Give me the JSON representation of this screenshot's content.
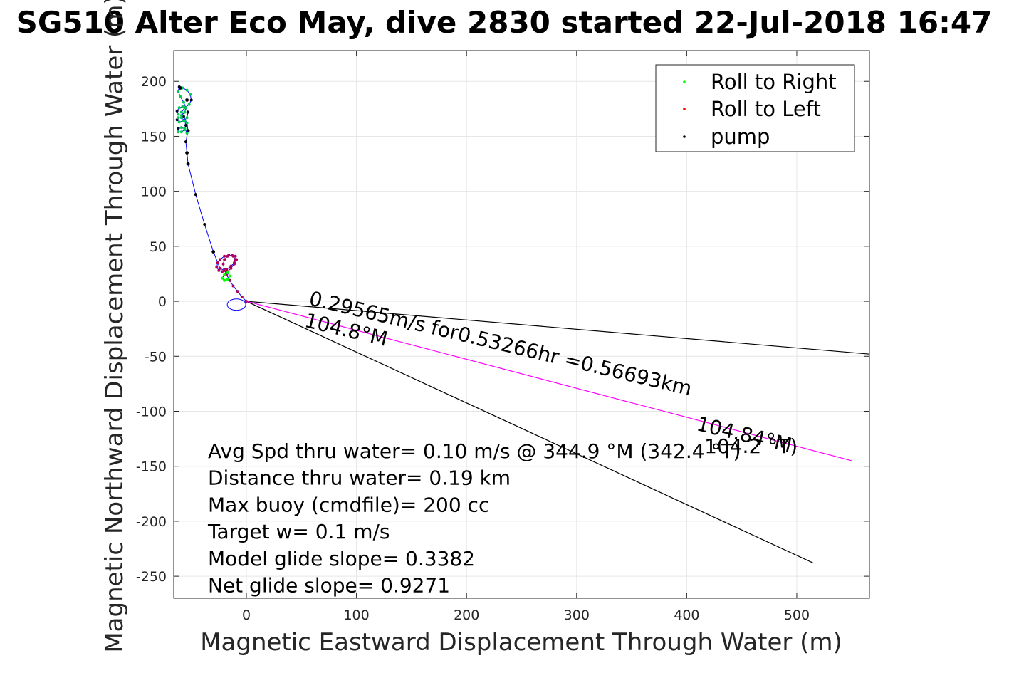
{
  "chart_data": {
    "type": "line",
    "title": "SG510 Alter Eco May, dive 2830 started 22-Jul-2018 16:47",
    "xlabel": "Magnetic Eastward Displacement Through Water (m)",
    "ylabel": "Magnetic Northward Displacement Through Water (m)",
    "xlim": [
      -66,
      566
    ],
    "ylim": [
      -270,
      228
    ],
    "xticks": [
      0,
      100,
      200,
      300,
      400,
      500
    ],
    "yticks": [
      -250,
      -200,
      -150,
      -100,
      -50,
      0,
      50,
      100,
      150,
      200
    ],
    "grid": true,
    "legend": {
      "position": "top-right",
      "entries": [
        {
          "label": "Roll to Right",
          "color": "#00ff00"
        },
        {
          "label": "Roll to Left",
          "color": "#ff0000"
        },
        {
          "label": "pump",
          "color": "#000000"
        }
      ]
    },
    "track_color": "#0000ff",
    "track": [
      [
        0,
        0
      ],
      [
        -4,
        4
      ],
      [
        -8,
        9
      ],
      [
        -12,
        14
      ],
      [
        -15,
        19
      ],
      [
        -18,
        24
      ],
      [
        -20,
        29
      ],
      [
        -21,
        34
      ],
      [
        -20,
        38
      ],
      [
        -17,
        41
      ],
      [
        -13,
        42
      ],
      [
        -10,
        41
      ],
      [
        -9,
        38
      ],
      [
        -11,
        35
      ],
      [
        -14,
        32
      ],
      [
        -18,
        29
      ],
      [
        -22,
        27
      ],
      [
        -25,
        28
      ],
      [
        -27,
        31
      ],
      [
        -26,
        35
      ],
      [
        -24,
        38
      ],
      [
        -20,
        41
      ],
      [
        -16,
        42
      ],
      [
        -12,
        41
      ],
      [
        -10,
        38
      ],
      [
        -11,
        34
      ],
      [
        -14,
        30
      ],
      [
        -17,
        27
      ],
      [
        -20,
        24
      ],
      [
        -22,
        21
      ],
      [
        -20,
        19
      ],
      [
        -17,
        20
      ],
      [
        -15,
        23
      ],
      [
        -17,
        26
      ],
      [
        -20,
        28
      ],
      [
        -24,
        30
      ],
      [
        -30,
        45
      ],
      [
        -38,
        70
      ],
      [
        -46,
        97
      ],
      [
        -53,
        125
      ],
      [
        -54,
        135
      ],
      [
        -55,
        145
      ],
      [
        -53,
        155
      ],
      [
        -54,
        162
      ],
      [
        -57,
        168
      ],
      [
        -59,
        172
      ],
      [
        -56,
        176
      ],
      [
        -52,
        179
      ],
      [
        -50,
        183
      ],
      [
        -51,
        188
      ],
      [
        -54,
        192
      ],
      [
        -58,
        194
      ],
      [
        -61,
        195
      ],
      [
        -62,
        191
      ],
      [
        -60,
        186
      ],
      [
        -57,
        181
      ],
      [
        -55,
        176
      ],
      [
        -56,
        172
      ],
      [
        -59,
        169
      ],
      [
        -62,
        170
      ],
      [
        -63,
        173
      ],
      [
        -61,
        176
      ],
      [
        -58,
        177
      ],
      [
        -55,
        176
      ],
      [
        -53,
        172
      ],
      [
        -54,
        167
      ],
      [
        -57,
        164
      ],
      [
        -61,
        163
      ],
      [
        -63,
        165
      ],
      [
        -62,
        167
      ],
      [
        -59,
        167
      ],
      [
        -56,
        164
      ],
      [
        -55,
        160
      ],
      [
        -56,
        156
      ],
      [
        -59,
        154
      ],
      [
        -62,
        154
      ],
      [
        -62,
        157
      ],
      [
        -59,
        158
      ],
      [
        -56,
        157
      ],
      [
        -54,
        153
      ]
    ],
    "lines": [
      {
        "color": "#000000",
        "points": [
          [
            0,
            0
          ],
          [
            566,
            -48
          ]
        ]
      },
      {
        "color": "#000000",
        "points": [
          [
            0,
            0
          ],
          [
            515,
            -238
          ]
        ]
      },
      {
        "color": "#ff00ff",
        "points": [
          [
            0,
            0
          ],
          [
            550,
            -145
          ]
        ]
      }
    ],
    "annotations": [
      {
        "text": "0.29565m/s for0.53266hr =0.56693km",
        "x": 56,
        "y": -3,
        "angle": 13.4
      },
      {
        "text": "104.8°M",
        "x": 52,
        "y": -23,
        "angle": 13.4
      },
      {
        "text": "104.84°M",
        "x": 408,
        "y": -117,
        "angle": 13.4
      },
      {
        "text": "104.2 °T)",
        "x": 416,
        "y": -138,
        "angle": 0
      }
    ],
    "info_lines": [
      "Avg Spd thru water=  0.10 m/s @ 344.9 °M (342.4 °T)",
      "Distance thru water=  0.19 km",
      "Max buoy (cmdfile)= 200 cc",
      "Target w= 0.1 m/s",
      "Model glide slope= 0.3382",
      "Net glide slope= 0.9271"
    ]
  }
}
